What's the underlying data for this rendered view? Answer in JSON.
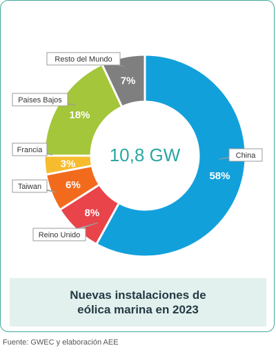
{
  "chart_data": {
    "type": "donut",
    "center_label": "10,8 GW",
    "title": "Nuevas instalaciones de eólica marina en 2023",
    "slices": [
      {
        "label": "China",
        "value": 58,
        "display": "58%",
        "color": "#12a0db"
      },
      {
        "label": "Reino Unido",
        "value": 8,
        "display": "8%",
        "color": "#e8444a"
      },
      {
        "label": "Taiwan",
        "value": 6,
        "display": "6%",
        "color": "#f26b1d"
      },
      {
        "label": "Francia",
        "value": 3,
        "display": "3%",
        "color": "#f7bc2e"
      },
      {
        "label": "Paises Bajos",
        "value": 18,
        "display": "18%",
        "color": "#a4c63a"
      },
      {
        "label": "Resto del Mundo",
        "value": 7,
        "display": "7%",
        "color": "#7f7f7f"
      }
    ]
  },
  "source": "Fuente: GWEC y elaboración AEE"
}
